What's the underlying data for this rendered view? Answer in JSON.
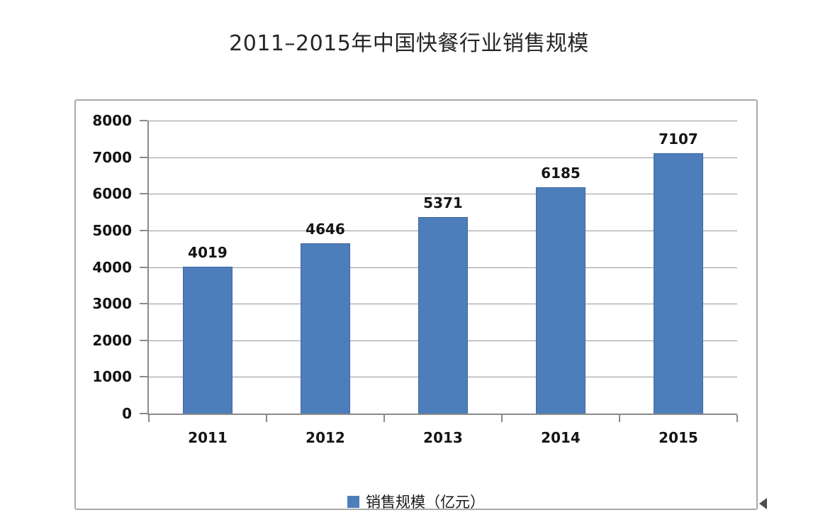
{
  "header": {
    "title": "2011–2015年中国快餐行业销售规模"
  },
  "chart_data": {
    "type": "bar",
    "title": "2011–2015年中国快餐行业销售规模",
    "categories": [
      "2011",
      "2012",
      "2013",
      "2014",
      "2015"
    ],
    "series": [
      {
        "name": "销售规模（亿元）",
        "values": [
          4019,
          4646,
          5371,
          6185,
          7107
        ]
      }
    ],
    "data_labels": [
      "4019",
      "4646",
      "5371",
      "6185",
      "7107"
    ],
    "xlabel": "",
    "ylabel": "",
    "ylim": [
      0,
      8000
    ],
    "y_tick_step": 1000,
    "y_ticks": [
      0,
      1000,
      2000,
      3000,
      4000,
      5000,
      6000,
      7000,
      8000
    ],
    "grid": "horizontal",
    "legend_position": "bottom",
    "colors": {
      "bar_fill": "#4D7EBB",
      "bar_border": "#41699E",
      "gridline": "#979797",
      "axis": "#8a8a8a",
      "text": "#141414",
      "frame_border": "#a9a9a9"
    }
  },
  "legend": {
    "label": "销售规模（亿元）"
  }
}
